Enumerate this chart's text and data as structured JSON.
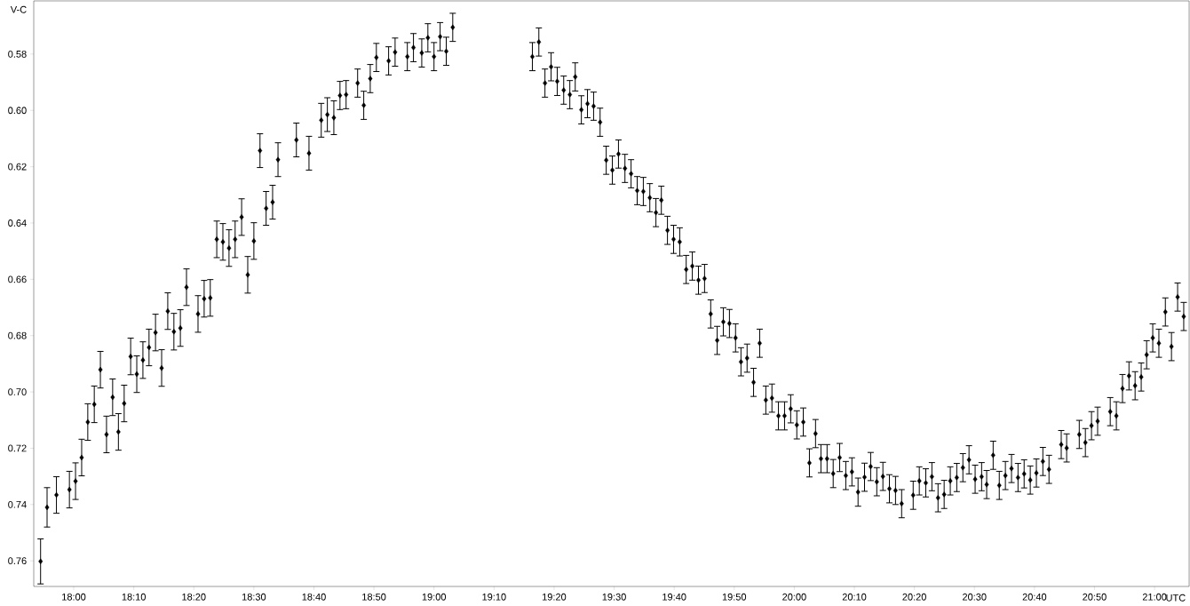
{
  "chart_data": {
    "type": "scatter",
    "ylabel": "V-C",
    "xlabel": "UTC",
    "xlim": [
      17.889,
      21.096
    ],
    "ylim": [
      0.7691,
      0.5611
    ],
    "xticks": [
      {
        "value": 18,
        "label": "18:00"
      },
      {
        "value": 18.1667,
        "label": "18:10"
      },
      {
        "value": 18.3333,
        "label": "18:20"
      },
      {
        "value": 18.5,
        "label": "18:30"
      },
      {
        "value": 18.6667,
        "label": "18:40"
      },
      {
        "value": 18.8333,
        "label": "18:50"
      },
      {
        "value": 19,
        "label": "19:00"
      },
      {
        "value": 19.1667,
        "label": "19:10"
      },
      {
        "value": 19.3333,
        "label": "19:20"
      },
      {
        "value": 19.5,
        "label": "19:30"
      },
      {
        "value": 19.6667,
        "label": "19:40"
      },
      {
        "value": 19.8333,
        "label": "19:50"
      },
      {
        "value": 20,
        "label": "20:00"
      },
      {
        "value": 20.1667,
        "label": "20:10"
      },
      {
        "value": 20.3333,
        "label": "20:20"
      },
      {
        "value": 20.5,
        "label": "20:30"
      },
      {
        "value": 20.6667,
        "label": "20:40"
      },
      {
        "value": 20.8333,
        "label": "20:50"
      },
      {
        "value": 21,
        "label": "21:00"
      }
    ],
    "yticks": [
      {
        "value": 0.58,
        "label": "0.58"
      },
      {
        "value": 0.6,
        "label": "0.60"
      },
      {
        "value": 0.62,
        "label": "0.62"
      },
      {
        "value": 0.64,
        "label": "0.64"
      },
      {
        "value": 0.66,
        "label": "0.66"
      },
      {
        "value": 0.68,
        "label": "0.68"
      },
      {
        "value": 0.7,
        "label": "0.70"
      },
      {
        "value": 0.72,
        "label": "0.72"
      },
      {
        "value": 0.74,
        "label": "0.74"
      },
      {
        "value": 0.76,
        "label": "0.76"
      }
    ],
    "marker": "diamond",
    "color": "#000000",
    "x": [
      17.908,
      17.926,
      17.952,
      17.988,
      18.005,
      18.022,
      18.039,
      18.057,
      18.074,
      18.091,
      18.108,
      18.124,
      18.14,
      18.158,
      18.175,
      18.192,
      18.209,
      18.227,
      18.244,
      18.261,
      18.278,
      18.296,
      18.313,
      18.345,
      18.362,
      18.379,
      18.397,
      18.414,
      18.431,
      18.448,
      18.466,
      18.483,
      18.5,
      18.517,
      18.534,
      18.552,
      18.567,
      18.618,
      18.653,
      18.687,
      18.704,
      18.722,
      18.739,
      18.756,
      18.788,
      18.805,
      18.823,
      18.84,
      18.874,
      18.892,
      18.926,
      18.943,
      18.966,
      18.983,
      19.0,
      19.017,
      19.034,
      19.052,
      19.273,
      19.291,
      19.308,
      19.325,
      19.342,
      19.36,
      19.377,
      19.392,
      19.409,
      19.426,
      19.443,
      19.461,
      19.478,
      19.495,
      19.512,
      19.53,
      19.547,
      19.564,
      19.581,
      19.599,
      19.616,
      19.631,
      19.648,
      19.665,
      19.682,
      19.7,
      19.717,
      19.734,
      19.751,
      19.768,
      19.786,
      19.803,
      19.82,
      19.837,
      19.852,
      19.869,
      19.887,
      19.904,
      19.921,
      19.938,
      19.956,
      19.973,
      19.99,
      20.007,
      20.025,
      20.042,
      20.059,
      20.074,
      20.091,
      20.108,
      20.126,
      20.143,
      20.16,
      20.177,
      20.195,
      20.212,
      20.229,
      20.246,
      20.264,
      20.281,
      20.298,
      20.33,
      20.347,
      20.365,
      20.382,
      20.399,
      20.416,
      20.433,
      20.451,
      20.468,
      20.485,
      20.502,
      20.52,
      20.534,
      20.552,
      20.569,
      20.586,
      20.603,
      20.621,
      20.638,
      20.655,
      20.672,
      20.69,
      20.707,
      20.741,
      20.756,
      20.791,
      20.808,
      20.825,
      20.842,
      20.877,
      20.894,
      20.911,
      20.929,
      20.946,
      20.963,
      20.978,
      20.995,
      21.012,
      21.03,
      21.047,
      21.064,
      21.081
    ],
    "values": [
      0.7602,
      0.741,
      0.7366,
      0.7347,
      0.7317,
      0.7233,
      0.7107,
      0.7044,
      0.6921,
      0.7151,
      0.7019,
      0.7142,
      0.7041,
      0.6874,
      0.6937,
      0.6887,
      0.6842,
      0.6789,
      0.6915,
      0.6713,
      0.6786,
      0.6773,
      0.6628,
      0.6723,
      0.6669,
      0.6666,
      0.6458,
      0.6467,
      0.6489,
      0.6458,
      0.6379,
      0.6584,
      0.6464,
      0.6143,
      0.6348,
      0.6326,
      0.6175,
      0.6105,
      0.6152,
      0.6035,
      0.6015,
      0.6026,
      0.5947,
      0.5944,
      0.5903,
      0.5982,
      0.5887,
      0.5812,
      0.5824,
      0.5793,
      0.5809,
      0.5777,
      0.5796,
      0.5742,
      0.5809,
      0.5738,
      0.579,
      0.5705,
      0.5809,
      0.5757,
      0.5903,
      0.5845,
      0.5897,
      0.5928,
      0.5944,
      0.5881,
      0.5998,
      0.5976,
      0.5985,
      0.6042,
      0.6177,
      0.6212,
      0.6155,
      0.6206,
      0.6225,
      0.6285,
      0.6288,
      0.631,
      0.6363,
      0.6319,
      0.6426,
      0.6458,
      0.6467,
      0.6565,
      0.6553,
      0.6603,
      0.6597,
      0.6723,
      0.6817,
      0.6751,
      0.6757,
      0.6808,
      0.6893,
      0.688,
      0.6966,
      0.6827,
      0.7029,
      0.7022,
      0.7085,
      0.7085,
      0.706,
      0.7117,
      0.7107,
      0.7252,
      0.7148,
      0.7237,
      0.7237,
      0.729,
      0.7233,
      0.7297,
      0.7284,
      0.7356,
      0.7303,
      0.7265,
      0.7319,
      0.73,
      0.7344,
      0.735,
      0.7397,
      0.7367,
      0.7316,
      0.7323,
      0.7301,
      0.7376,
      0.7364,
      0.7316,
      0.7304,
      0.7269,
      0.7241,
      0.731,
      0.7301,
      0.7329,
      0.7225,
      0.7332,
      0.7297,
      0.7272,
      0.7304,
      0.7291,
      0.7313,
      0.7288,
      0.7247,
      0.7275,
      0.7187,
      0.7199,
      0.7151,
      0.718,
      0.712,
      0.7104,
      0.707,
      0.7085,
      0.6988,
      0.6943,
      0.6978,
      0.6947,
      0.6868,
      0.6808,
      0.6827,
      0.6716,
      0.6839,
      0.6663,
      0.6732
    ],
    "errors": [
      0.008,
      0.007,
      0.0065,
      0.0065,
      0.0065,
      0.0065,
      0.0065,
      0.0065,
      0.0065,
      0.0065,
      0.0065,
      0.0065,
      0.0065,
      0.0065,
      0.0065,
      0.0065,
      0.0065,
      0.0065,
      0.0065,
      0.0065,
      0.0065,
      0.0065,
      0.0065,
      0.0065,
      0.0065,
      0.0065,
      0.0065,
      0.0065,
      0.0065,
      0.0065,
      0.0065,
      0.0065,
      0.0065,
      0.006,
      0.006,
      0.006,
      0.006,
      0.006,
      0.006,
      0.006,
      0.006,
      0.006,
      0.005,
      0.005,
      0.005,
      0.005,
      0.005,
      0.005,
      0.005,
      0.005,
      0.005,
      0.005,
      0.005,
      0.005,
      0.005,
      0.005,
      0.005,
      0.005,
      0.005,
      0.005,
      0.005,
      0.005,
      0.005,
      0.005,
      0.005,
      0.005,
      0.005,
      0.005,
      0.005,
      0.005,
      0.005,
      0.005,
      0.005,
      0.005,
      0.005,
      0.005,
      0.005,
      0.005,
      0.005,
      0.005,
      0.005,
      0.005,
      0.005,
      0.005,
      0.005,
      0.005,
      0.005,
      0.005,
      0.005,
      0.005,
      0.005,
      0.005,
      0.005,
      0.005,
      0.005,
      0.005,
      0.005,
      0.005,
      0.005,
      0.005,
      0.005,
      0.005,
      0.005,
      0.005,
      0.005,
      0.005,
      0.005,
      0.005,
      0.005,
      0.005,
      0.005,
      0.005,
      0.005,
      0.005,
      0.005,
      0.005,
      0.005,
      0.005,
      0.005,
      0.005,
      0.005,
      0.005,
      0.005,
      0.005,
      0.005,
      0.005,
      0.005,
      0.005,
      0.005,
      0.005,
      0.005,
      0.005,
      0.005,
      0.005,
      0.005,
      0.005,
      0.005,
      0.005,
      0.005,
      0.005,
      0.005,
      0.005,
      0.005,
      0.005,
      0.005,
      0.005,
      0.005,
      0.005,
      0.005,
      0.005,
      0.005,
      0.005,
      0.005,
      0.005,
      0.005,
      0.005,
      0.005,
      0.005,
      0.005,
      0.005,
      0.005
    ]
  }
}
